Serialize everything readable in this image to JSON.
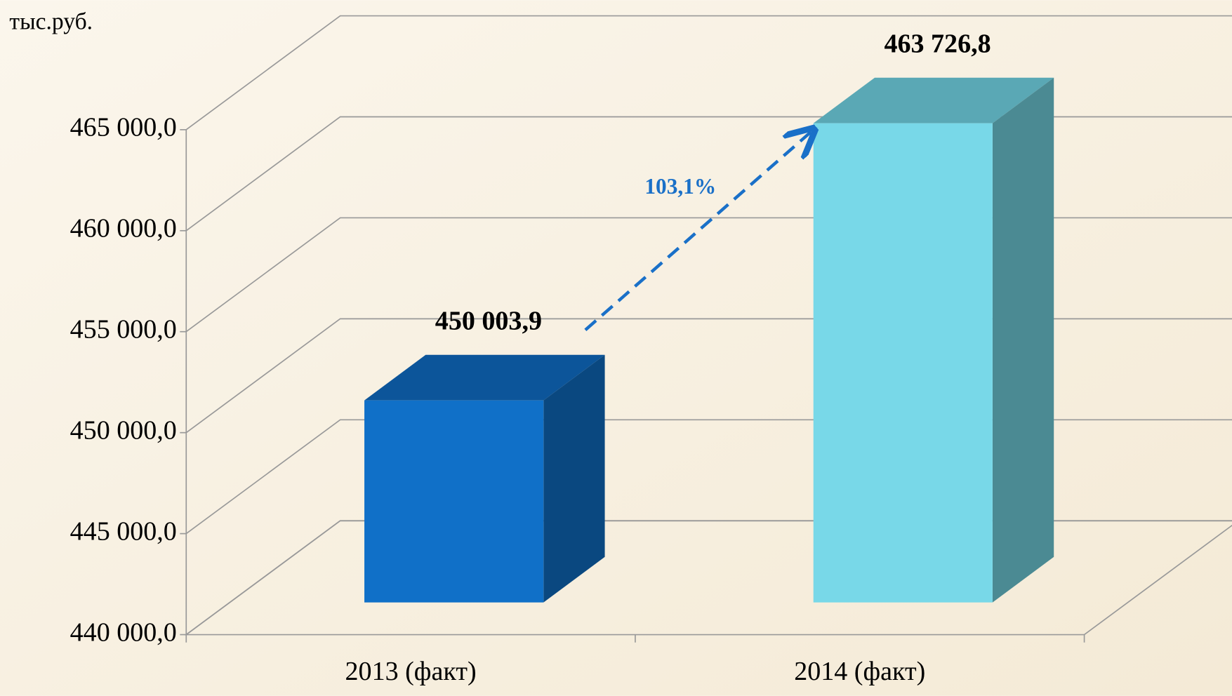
{
  "chart_data": {
    "type": "bar3d",
    "unit_label": "тыс.руб.",
    "categories": [
      "2013 (факт)",
      "2014 (факт)"
    ],
    "values": [
      450003.9,
      463726.8
    ],
    "value_labels": [
      "450 003,9",
      "463 726,8"
    ],
    "colors": [
      "#1070c8",
      "#78d8e8"
    ],
    "ylim": [
      440000,
      465000
    ],
    "yticks": [
      {
        "value": 440000,
        "label": "440 000,0"
      },
      {
        "value": 445000,
        "label": "445 000,0"
      },
      {
        "value": 450000,
        "label": "450 000,0"
      },
      {
        "value": 455000,
        "label": "455 000,0"
      },
      {
        "value": 460000,
        "label": "460 000,0"
      },
      {
        "value": 465000,
        "label": "465 000,0"
      }
    ],
    "grid": true,
    "annotation": "103,1%"
  }
}
